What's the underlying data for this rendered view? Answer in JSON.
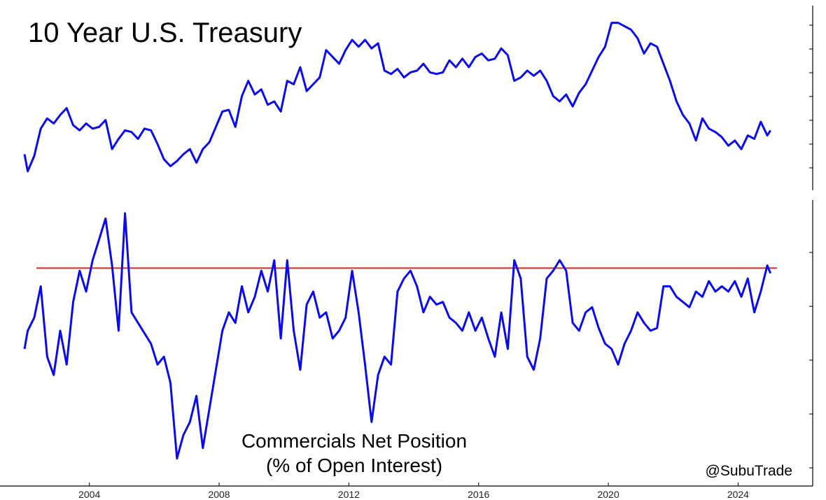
{
  "chart_data": [
    {
      "type": "line",
      "title": "10 Year U.S. Treasury",
      "xlim": [
        2002.0,
        2025.2
      ],
      "ylim": [
        0,
        1
      ],
      "color": "#0a0aee",
      "series": [
        {
          "x": [
            2002.0,
            2002.1,
            2002.3,
            2002.5,
            2002.7,
            2002.9,
            2003.1,
            2003.3,
            2003.5,
            2003.7,
            2003.9,
            2004.1,
            2004.3,
            2004.5,
            2004.7,
            2004.9,
            2005.1,
            2005.3,
            2005.5,
            2005.7,
            2005.9,
            2006.1,
            2006.3,
            2006.5,
            2006.7,
            2006.9,
            2007.1,
            2007.3,
            2007.5,
            2007.7,
            2007.9,
            2008.1,
            2008.3,
            2008.5,
            2008.7,
            2008.9,
            2009.1,
            2009.3,
            2009.5,
            2009.7,
            2009.9,
            2010.1,
            2010.3,
            2010.5,
            2010.7,
            2010.9,
            2011.1,
            2011.3,
            2011.5,
            2011.7,
            2011.9,
            2012.1,
            2012.3,
            2012.5,
            2012.7,
            2012.9,
            2013.1,
            2013.3,
            2013.5,
            2013.7,
            2013.9,
            2014.1,
            2014.3,
            2014.5,
            2014.7,
            2014.9,
            2015.1,
            2015.3,
            2015.5,
            2015.7,
            2015.9,
            2016.1,
            2016.3,
            2016.5,
            2016.7,
            2016.9,
            2017.1,
            2017.3,
            2017.5,
            2017.7,
            2017.9,
            2018.1,
            2018.3,
            2018.5,
            2018.7,
            2018.9,
            2019.1,
            2019.3,
            2019.5,
            2019.7,
            2019.9,
            2020.1,
            2020.3,
            2020.5,
            2020.7,
            2020.9,
            2021.1,
            2021.3,
            2021.5,
            2021.7,
            2021.9,
            2022.1,
            2022.3,
            2022.5,
            2022.7,
            2022.9,
            2023.1,
            2023.3,
            2023.5,
            2023.7,
            2023.9,
            2024.1,
            2024.3,
            2024.5,
            2024.7,
            2024.9,
            2025.0
          ],
          "y": [
            0.17,
            0.07,
            0.16,
            0.32,
            0.38,
            0.35,
            0.4,
            0.44,
            0.34,
            0.31,
            0.35,
            0.32,
            0.33,
            0.37,
            0.2,
            0.26,
            0.31,
            0.3,
            0.26,
            0.32,
            0.31,
            0.23,
            0.14,
            0.1,
            0.13,
            0.17,
            0.2,
            0.12,
            0.2,
            0.24,
            0.33,
            0.42,
            0.43,
            0.33,
            0.51,
            0.6,
            0.52,
            0.55,
            0.46,
            0.48,
            0.42,
            0.6,
            0.58,
            0.68,
            0.54,
            0.58,
            0.62,
            0.78,
            0.74,
            0.7,
            0.78,
            0.84,
            0.8,
            0.84,
            0.79,
            0.82,
            0.66,
            0.64,
            0.67,
            0.62,
            0.65,
            0.66,
            0.7,
            0.65,
            0.64,
            0.65,
            0.72,
            0.68,
            0.73,
            0.68,
            0.74,
            0.76,
            0.72,
            0.73,
            0.79,
            0.75,
            0.6,
            0.62,
            0.66,
            0.63,
            0.66,
            0.6,
            0.51,
            0.48,
            0.52,
            0.45,
            0.53,
            0.58,
            0.66,
            0.74,
            0.8,
            0.94,
            0.94,
            0.92,
            0.9,
            0.85,
            0.76,
            0.82,
            0.8,
            0.7,
            0.6,
            0.48,
            0.4,
            0.35,
            0.25,
            0.38,
            0.32,
            0.3,
            0.27,
            0.22,
            0.25,
            0.2,
            0.28,
            0.26,
            0.36,
            0.28,
            0.31
          ]
        }
      ]
    },
    {
      "type": "line",
      "xlabel": "",
      "ylabel": "",
      "xlim": [
        2002.0,
        2025.2
      ],
      "ylim": [
        0,
        1
      ],
      "color": "#0a0aee",
      "reference_line": {
        "value": 0.79,
        "color": "#e0241b"
      },
      "x_ticks": [
        2004,
        2008,
        2012,
        2016,
        2020,
        2024
      ],
      "annotation_line1": "Commercials Net Position",
      "annotation_line2": "(% of Open Interest)",
      "series": [
        {
          "x": [
            2002.0,
            2002.1,
            2002.3,
            2002.5,
            2002.7,
            2002.9,
            2003.1,
            2003.3,
            2003.5,
            2003.7,
            2003.9,
            2004.1,
            2004.3,
            2004.5,
            2004.7,
            2004.9,
            2005.1,
            2005.3,
            2005.5,
            2005.7,
            2005.9,
            2006.1,
            2006.3,
            2006.5,
            2006.7,
            2006.9,
            2007.1,
            2007.3,
            2007.5,
            2007.7,
            2007.9,
            2008.1,
            2008.3,
            2008.5,
            2008.7,
            2008.9,
            2009.1,
            2009.3,
            2009.5,
            2009.7,
            2009.9,
            2010.1,
            2010.3,
            2010.5,
            2010.7,
            2010.9,
            2011.1,
            2011.3,
            2011.5,
            2011.7,
            2011.9,
            2012.1,
            2012.3,
            2012.5,
            2012.7,
            2012.9,
            2013.1,
            2013.3,
            2013.5,
            2013.7,
            2013.9,
            2014.1,
            2014.3,
            2014.5,
            2014.7,
            2014.9,
            2015.1,
            2015.3,
            2015.5,
            2015.7,
            2015.9,
            2016.1,
            2016.3,
            2016.5,
            2016.7,
            2016.9,
            2017.1,
            2017.3,
            2017.5,
            2017.7,
            2017.9,
            2018.1,
            2018.3,
            2018.5,
            2018.7,
            2018.9,
            2019.1,
            2019.3,
            2019.5,
            2019.7,
            2019.9,
            2020.1,
            2020.3,
            2020.5,
            2020.7,
            2020.9,
            2021.1,
            2021.3,
            2021.5,
            2021.7,
            2021.9,
            2022.1,
            2022.3,
            2022.5,
            2022.7,
            2022.9,
            2023.1,
            2023.3,
            2023.5,
            2023.7,
            2023.9,
            2024.1,
            2024.3,
            2024.5,
            2024.7,
            2024.9,
            2025.0
          ],
          "y": [
            0.48,
            0.55,
            0.6,
            0.72,
            0.45,
            0.38,
            0.55,
            0.42,
            0.66,
            0.78,
            0.7,
            0.82,
            0.9,
            0.98,
            0.8,
            0.55,
            1.0,
            0.62,
            0.58,
            0.54,
            0.5,
            0.42,
            0.45,
            0.35,
            0.06,
            0.15,
            0.2,
            0.3,
            0.1,
            0.25,
            0.4,
            0.55,
            0.62,
            0.58,
            0.72,
            0.62,
            0.68,
            0.78,
            0.7,
            0.82,
            0.52,
            0.82,
            0.55,
            0.4,
            0.65,
            0.7,
            0.6,
            0.62,
            0.52,
            0.55,
            0.6,
            0.78,
            0.62,
            0.42,
            0.2,
            0.38,
            0.45,
            0.42,
            0.7,
            0.75,
            0.78,
            0.72,
            0.62,
            0.68,
            0.65,
            0.66,
            0.6,
            0.58,
            0.55,
            0.62,
            0.55,
            0.6,
            0.52,
            0.45,
            0.62,
            0.48,
            0.82,
            0.75,
            0.45,
            0.4,
            0.52,
            0.75,
            0.78,
            0.82,
            0.78,
            0.58,
            0.55,
            0.62,
            0.64,
            0.56,
            0.5,
            0.48,
            0.42,
            0.5,
            0.55,
            0.62,
            0.58,
            0.55,
            0.56,
            0.72,
            0.72,
            0.68,
            0.66,
            0.64,
            0.7,
            0.68,
            0.74,
            0.7,
            0.72,
            0.7,
            0.74,
            0.68,
            0.75,
            0.62,
            0.7,
            0.8,
            0.77
          ]
        }
      ]
    }
  ],
  "credit": "@SubuTrade"
}
